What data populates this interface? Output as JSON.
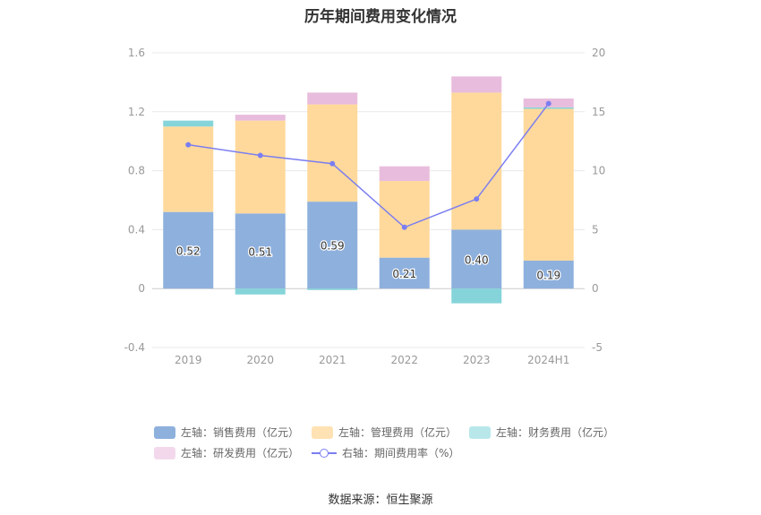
{
  "title": "历年期间费用变化情况",
  "source": "数据来源：恒生聚源",
  "legend": [
    {
      "label": "左轴：销售费用（亿元）",
      "color": "#8eb0dd",
      "kind": "bar"
    },
    {
      "label": "左轴：管理费用（亿元）",
      "color": "#ffe2b3",
      "kind": "bar"
    },
    {
      "label": "左轴：财务费用（亿元）",
      "color": "#b8e7ea",
      "kind": "bar"
    },
    {
      "label": "左轴：研发费用（亿元）",
      "color": "#f3d8ec",
      "kind": "bar"
    },
    {
      "label": "右轴：期间费用率（%）",
      "color": "#7b7ef0",
      "kind": "line"
    }
  ],
  "chart_data": {
    "type": "bar",
    "stacked": true,
    "categories": [
      "2019",
      "2020",
      "2021",
      "2022",
      "2023",
      "2024H1"
    ],
    "series": [
      {
        "name": "左轴：销售费用（亿元）",
        "axis": "left",
        "color": "#8eb0dd",
        "values": [
          0.52,
          0.51,
          0.59,
          0.21,
          0.4,
          0.19
        ]
      },
      {
        "name": "左轴：管理费用（亿元）",
        "axis": "left",
        "color": "#ffd99b",
        "values": [
          0.58,
          0.63,
          0.66,
          0.52,
          0.93,
          1.03
        ]
      },
      {
        "name": "左轴：财务费用（亿元）",
        "axis": "left",
        "color": "#85d4d9",
        "values": [
          0.04,
          -0.04,
          -0.01,
          0.0,
          -0.1,
          0.01
        ]
      },
      {
        "name": "左轴：研发费用（亿元）",
        "axis": "left",
        "color": "#e8bcdc",
        "values": [
          0.0,
          0.04,
          0.08,
          0.1,
          0.11,
          0.06
        ]
      },
      {
        "name": "右轴：期间费用率（%）",
        "axis": "right",
        "type": "line",
        "color": "#7b7ef0",
        "values": [
          12.2,
          11.3,
          10.6,
          5.2,
          7.6,
          15.7
        ]
      }
    ],
    "data_labels": [
      "0.52",
      "0.51",
      "0.59",
      "0.21",
      "0.40",
      "0.19"
    ],
    "left_axis": {
      "ylim": [
        -0.4,
        1.6
      ],
      "ticks": [
        "-0.4",
        "0",
        "0.4",
        "0.8",
        "1.2",
        "1.6"
      ]
    },
    "right_axis": {
      "ylim": [
        -5,
        20
      ],
      "ticks": [
        "-5",
        "0",
        "5",
        "10",
        "15",
        "20"
      ]
    },
    "grid": true,
    "legend_position": "bottom"
  }
}
